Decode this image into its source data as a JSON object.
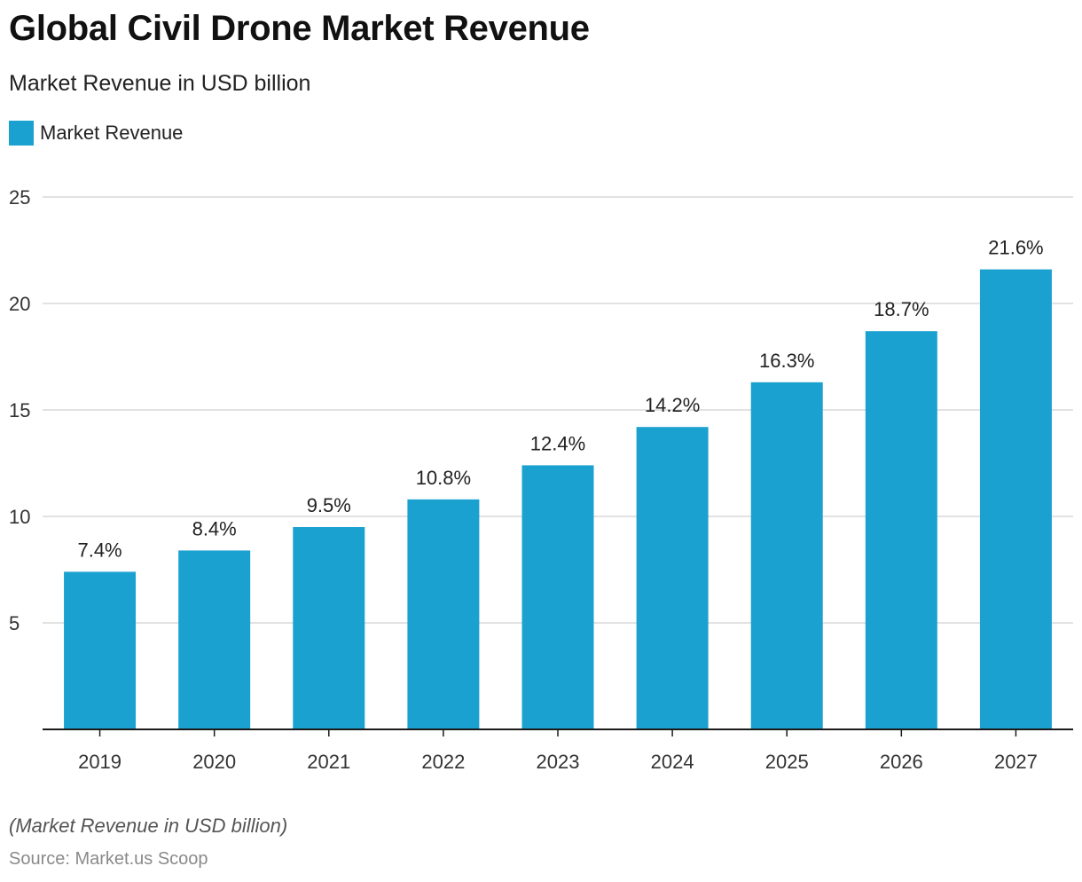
{
  "chart_data": {
    "type": "bar",
    "title": "Global Civil Drone Market Revenue",
    "subtitle": "Market Revenue in USD billion",
    "categories": [
      "2019",
      "2020",
      "2021",
      "2022",
      "2023",
      "2024",
      "2025",
      "2026",
      "2027"
    ],
    "series": [
      {
        "name": "Market Revenue",
        "values": [
          7.4,
          8.4,
          9.5,
          10.8,
          12.4,
          14.2,
          16.3,
          18.7,
          21.6
        ],
        "data_labels": [
          "7.4%",
          "8.4%",
          "9.5%",
          "10.8%",
          "12.4%",
          "14.2%",
          "16.3%",
          "18.7%",
          "21.6%"
        ],
        "color": "#1ba1d0"
      }
    ],
    "yticks": [
      "5",
      "10",
      "15",
      "20",
      "25"
    ],
    "ylim": [
      0,
      25
    ],
    "grid": true,
    "legend_position": "top-left",
    "footnote": "(Market Revenue in USD billion)",
    "source": "Source: Market.us Scoop"
  },
  "colors": {
    "bar": "#1ba1d0",
    "grid": "#d0d0d0",
    "axis": "#1a1a1a",
    "tick_text": "#333333"
  }
}
